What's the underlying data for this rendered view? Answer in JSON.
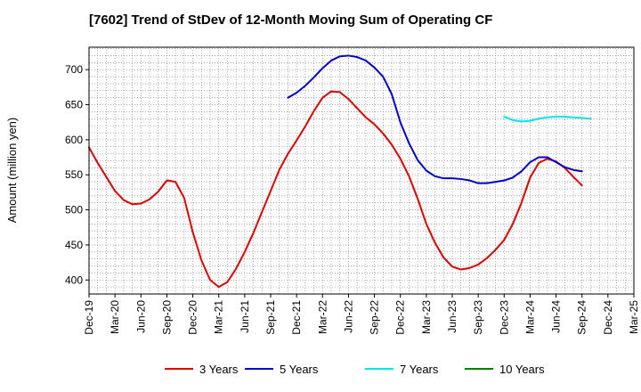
{
  "chart_data": {
    "type": "line",
    "title": "[7602]  Trend of StDev of 12-Month Moving Sum of Operating CF",
    "xlabel": "",
    "ylabel": "Amount (million yen)",
    "ylim": [
      380,
      732
    ],
    "y_ticks": [
      400,
      450,
      500,
      550,
      600,
      650,
      700
    ],
    "x_ticks": [
      "Dec-19",
      "Mar-20",
      "Jun-20",
      "Sep-20",
      "Dec-20",
      "Mar-21",
      "Jun-21",
      "Sep-21",
      "Dec-21",
      "Mar-22",
      "Jun-22",
      "Sep-22",
      "Dec-22",
      "Mar-23",
      "Jun-23",
      "Sep-23",
      "Dec-23",
      "Mar-24",
      "Jun-24",
      "Sep-24",
      "Dec-24",
      "Mar-25"
    ],
    "x_range_months": [
      0,
      63
    ],
    "grid": true,
    "legend_position": "bottom",
    "series": [
      {
        "name": "3 Years",
        "color": "#dd0000",
        "start_month": 0,
        "values": [
          589,
          567,
          547,
          527,
          514,
          508,
          509,
          515,
          526,
          542,
          540,
          517,
          468,
          428,
          400,
          390,
          397,
          416,
          440,
          467,
          497,
          527,
          557,
          580,
          599,
          619,
          641,
          660,
          669,
          668,
          658,
          645,
          632,
          622,
          609,
          593,
          573,
          548,
          516,
          480,
          453,
          432,
          419,
          415,
          417,
          422,
          431,
          443,
          457,
          480,
          510,
          546,
          567,
          573,
          569,
          560,
          547,
          535
        ]
      },
      {
        "name": "5 Years",
        "color": "#0000cc",
        "start_month": 23,
        "values": [
          660,
          667,
          677,
          689,
          702,
          713,
          719,
          720,
          718,
          713,
          703,
          690,
          665,
          625,
          595,
          571,
          556,
          548,
          545,
          545,
          544,
          542,
          538,
          538,
          540,
          542,
          546,
          555,
          568,
          575,
          575,
          568,
          561,
          557,
          555
        ]
      },
      {
        "name": "7 Years",
        "color": "#00e5e5",
        "start_month": 48,
        "values": [
          633,
          628,
          626,
          627,
          630,
          632,
          633,
          633,
          632,
          631,
          630
        ]
      },
      {
        "name": "10 Years",
        "color": "#008000",
        "start_month": 0,
        "values": []
      }
    ]
  }
}
